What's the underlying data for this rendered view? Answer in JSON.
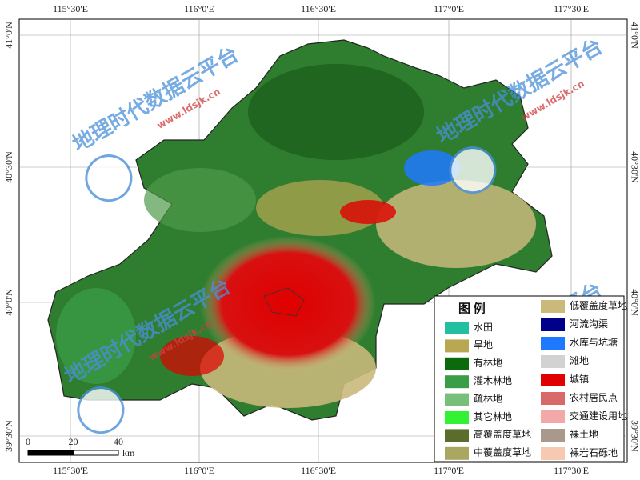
{
  "map": {
    "x_labels": [
      "115°30'E",
      "116°0'E",
      "116°30'E",
      "117°0'E",
      "117°30'E"
    ],
    "y_labels": [
      "41°0'N",
      "40°30'N",
      "40°0'N",
      "39°30'N"
    ],
    "legend": {
      "title": "图 例",
      "items": [
        {
          "label": "水田",
          "color": "#22bfa0"
        },
        {
          "label": "旱地",
          "color": "#b9a852"
        },
        {
          "label": "有林地",
          "color": "#0b6a0b"
        },
        {
          "label": "灌木林地",
          "color": "#3a9e48"
        },
        {
          "label": "疏林地",
          "color": "#78c07a"
        },
        {
          "label": "其它林地",
          "color": "#33f233"
        },
        {
          "label": "高覆盖度草地",
          "color": "#5b6d2b"
        },
        {
          "label": "中覆盖度草地",
          "color": "#a9a762"
        },
        {
          "label": "低覆盖度草地",
          "color": "#c9b97b"
        },
        {
          "label": "河流沟渠",
          "color": "#00008a"
        },
        {
          "label": "水库与坑塘",
          "color": "#1f79ff"
        },
        {
          "label": "滩地",
          "color": "#d2d2d2"
        },
        {
          "label": "城镇",
          "color": "#e00000"
        },
        {
          "label": "农村居民点",
          "color": "#d86a6a"
        },
        {
          "label": "交通建设用地",
          "color": "#f4a9a9"
        },
        {
          "label": "裸土地",
          "color": "#a9998c"
        },
        {
          "label": "裸岩石砾地",
          "color": "#f8c9b1"
        }
      ]
    },
    "scale_bar": {
      "ticks": [
        0,
        20,
        40
      ],
      "unit": "km"
    },
    "watermark": {
      "title": "地理时代数据云平台",
      "url": "www.ldsjk.cn"
    }
  }
}
